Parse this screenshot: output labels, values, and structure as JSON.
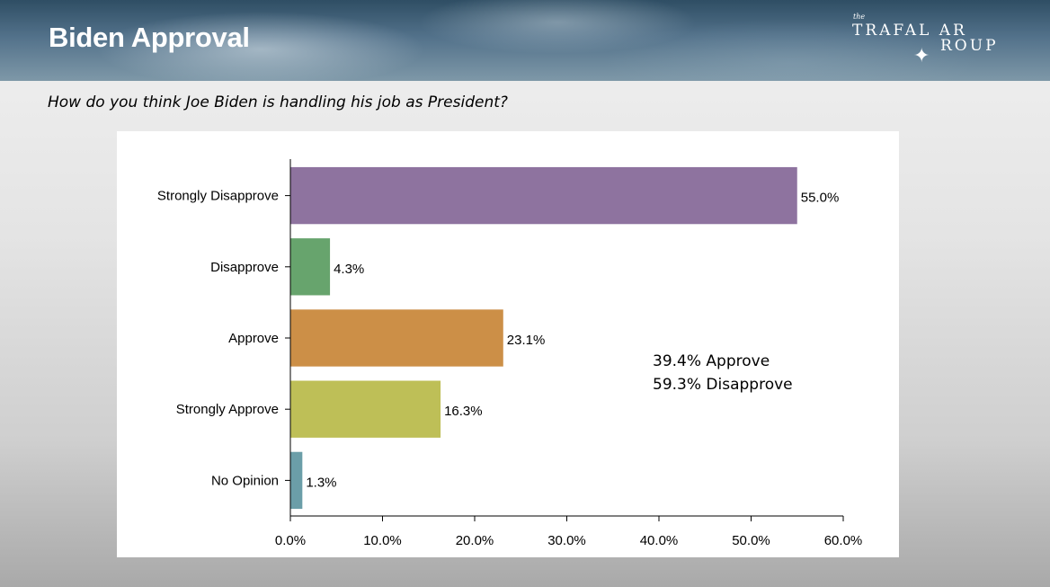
{
  "header": {
    "title": "Biden Approval",
    "logo": {
      "the": "the",
      "line1": "TRAFAL AR",
      "line2": "ROUP",
      "mark": "compass-rose-icon"
    }
  },
  "question": "How do you think Joe Biden is handling his job as President?",
  "summary": {
    "line1": "39.4% Approve",
    "line2": "59.3% Disapprove"
  },
  "chart_data": {
    "type": "bar",
    "orientation": "horizontal",
    "title": "",
    "xlabel": "",
    "ylabel": "",
    "categories": [
      "Strongly Disapprove",
      "Disapprove",
      "Approve",
      "Strongly Approve",
      "No Opinion"
    ],
    "values": [
      55.0,
      4.3,
      23.1,
      16.3,
      1.3
    ],
    "value_labels": [
      "55.0%",
      "4.3%",
      "23.1%",
      "16.3%",
      "1.3%"
    ],
    "colors": [
      "#8e739f",
      "#67a46d",
      "#cc8f47",
      "#bebf57",
      "#6b9ea8"
    ],
    "xlim": [
      0,
      60
    ],
    "xticks": [
      0,
      10,
      20,
      30,
      40,
      50,
      60
    ],
    "xtick_labels": [
      "0.0%",
      "10.0%",
      "20.0%",
      "30.0%",
      "40.0%",
      "50.0%",
      "60.0%"
    ],
    "grid": false,
    "legend": "none"
  }
}
